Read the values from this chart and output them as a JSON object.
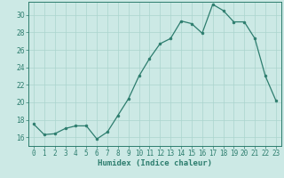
{
  "x": [
    0,
    1,
    2,
    3,
    4,
    5,
    6,
    7,
    8,
    9,
    10,
    11,
    12,
    13,
    14,
    15,
    16,
    17,
    18,
    19,
    20,
    21,
    22,
    23
  ],
  "y": [
    17.5,
    16.3,
    16.4,
    17.0,
    17.3,
    17.3,
    15.8,
    16.6,
    18.5,
    20.4,
    23.0,
    25.0,
    26.7,
    27.3,
    29.3,
    29.0,
    27.9,
    31.2,
    30.5,
    29.2,
    29.2,
    27.3,
    23.0,
    20.2
  ],
  "line_color": "#2d7d6e",
  "marker": "o",
  "marker_size": 2,
  "bg_color": "#cce9e5",
  "grid_color": "#aad4ce",
  "axis_color": "#2d7d6e",
  "spine_color": "#2d7d6e",
  "xlabel": "Humidex (Indice chaleur)",
  "xlim": [
    -0.5,
    23.5
  ],
  "ylim": [
    15.0,
    31.5
  ],
  "yticks": [
    16,
    18,
    20,
    22,
    24,
    26,
    28,
    30
  ],
  "xticks": [
    0,
    1,
    2,
    3,
    4,
    5,
    6,
    7,
    8,
    9,
    10,
    11,
    12,
    13,
    14,
    15,
    16,
    17,
    18,
    19,
    20,
    21,
    22,
    23
  ],
  "xlabel_fontsize": 6.5,
  "tick_fontsize": 5.5,
  "linewidth": 0.9
}
